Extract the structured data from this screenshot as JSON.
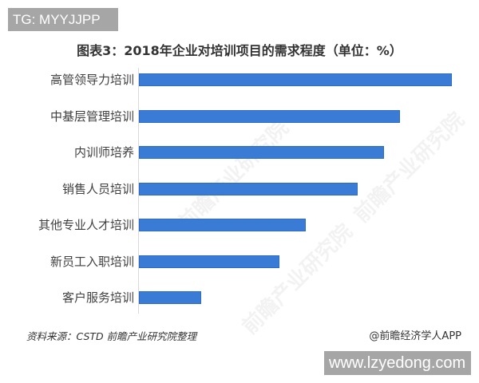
{
  "badge_top": "TG: MYYJJPP",
  "badge_bottom": "www.lzyedong.com",
  "watermark_text": "前瞻产业研究院",
  "footer": {
    "source": "资料来源：CSTD 前瞻产业研究院整理",
    "brand": "@前瞻经济学人APP"
  },
  "bar_color": "#3a7bd5",
  "chart_data": {
    "type": "bar",
    "orientation": "horizontal",
    "title": "图表3：2018年企业对培训项目的需求程度（单位：%）",
    "xlabel": "",
    "ylabel": "",
    "unit": "%",
    "grid": false,
    "legend": null,
    "value_labels_shown": false,
    "categories": [
      "高管领导力培训",
      "中基层管理培训",
      "内训师培养",
      "销售人员培训",
      "其他专业人才培训",
      "新员工入职培训",
      "客户服务培训"
    ],
    "values": [
      60,
      50,
      47,
      42,
      32,
      27,
      12
    ],
    "note": "No axis ticks or data labels are shown; values estimated relative to bar lengths (px: 392, 326, 306, 273, 208, 175, 77)"
  }
}
